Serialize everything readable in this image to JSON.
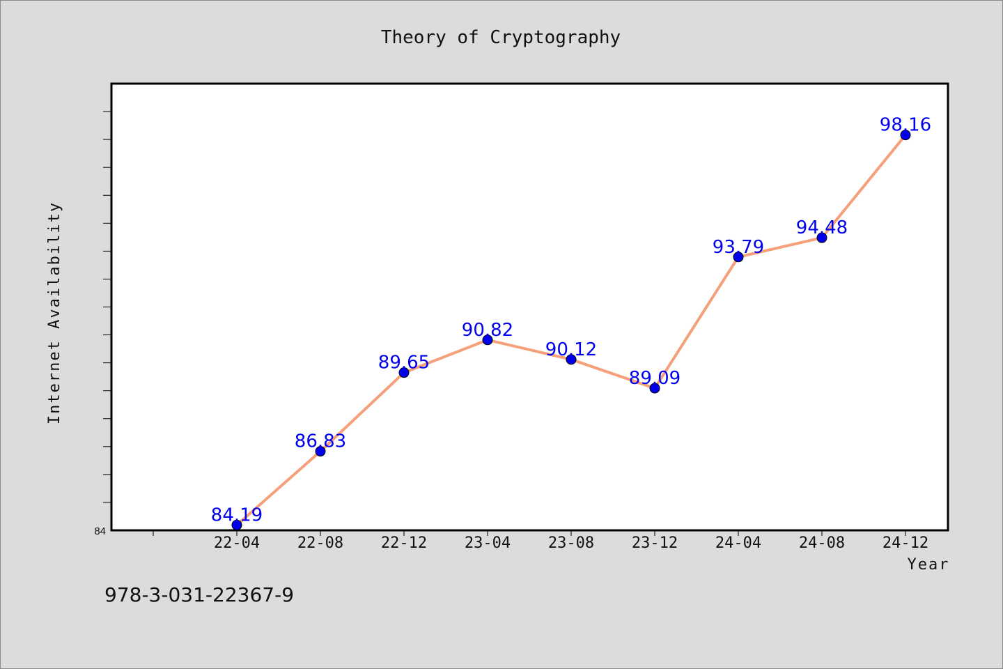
{
  "chart_data": {
    "type": "line",
    "title": "Theory of Cryptography",
    "xlabel": "Year",
    "ylabel": "Internet Availability",
    "categories": [
      "22-04",
      "22-08",
      "22-12",
      "23-04",
      "23-08",
      "23-12",
      "24-04",
      "24-08",
      "24-12"
    ],
    "series": [
      {
        "values": [
          84.19,
          86.83,
          89.65,
          90.82,
          90.12,
          89.09,
          93.79,
          94.48,
          98.16
        ]
      }
    ],
    "data_labels": [
      "84.19",
      "86.83",
      "89.65",
      "90.82",
      "90.12",
      "89.09",
      "93.79",
      "94.48",
      "98.16"
    ],
    "ylim": [
      84,
      100
    ],
    "ytick_labels": [
      "84"
    ],
    "grid": false,
    "legend": "none",
    "colors": {
      "line": "#f5a07a",
      "marker": "#0000ee",
      "label": "#0000ee",
      "plot_bg": "#ffffff",
      "page_bg": "#dcdcdc"
    }
  },
  "footer": {
    "isbn": "978-3-031-22367-9"
  }
}
